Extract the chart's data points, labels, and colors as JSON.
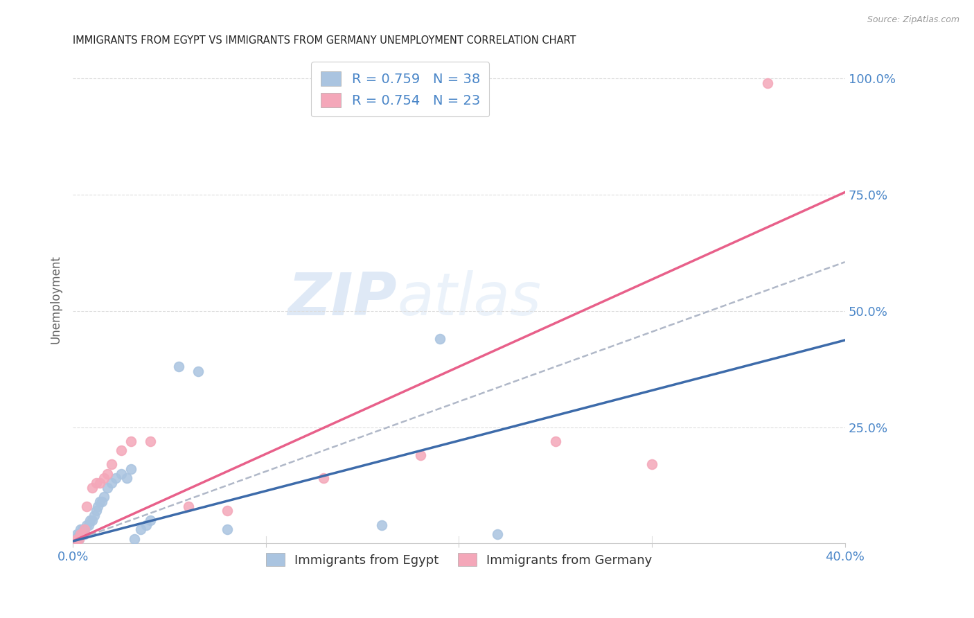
{
  "title": "IMMIGRANTS FROM EGYPT VS IMMIGRANTS FROM GERMANY UNEMPLOYMENT CORRELATION CHART",
  "source": "Source: ZipAtlas.com",
  "ylabel": "Unemployment",
  "xlim": [
    0.0,
    0.4
  ],
  "ylim": [
    0.0,
    1.05
  ],
  "y_ticks": [
    0.0,
    0.25,
    0.5,
    0.75,
    1.0
  ],
  "y_tick_labels": [
    "",
    "25.0%",
    "50.0%",
    "75.0%",
    "100.0%"
  ],
  "watermark_zip": "ZIP",
  "watermark_atlas": "atlas",
  "egypt_color": "#aac4e0",
  "germany_color": "#f4a7b9",
  "egypt_line_color": "#3d6baa",
  "germany_line_color": "#e8608a",
  "egypt_R": "0.759",
  "egypt_N": "38",
  "germany_R": "0.754",
  "germany_N": "23",
  "legend_label_egypt": "Immigrants from Egypt",
  "legend_label_germany": "Immigrants from Germany",
  "egypt_x": [
    0.001,
    0.001,
    0.002,
    0.002,
    0.003,
    0.003,
    0.004,
    0.004,
    0.005,
    0.005,
    0.006,
    0.006,
    0.007,
    0.008,
    0.009,
    0.01,
    0.011,
    0.012,
    0.013,
    0.014,
    0.015,
    0.016,
    0.018,
    0.02,
    0.022,
    0.025,
    0.028,
    0.03,
    0.032,
    0.035,
    0.038,
    0.04,
    0.055,
    0.065,
    0.08,
    0.16,
    0.19,
    0.22
  ],
  "egypt_y": [
    0.005,
    0.01,
    0.01,
    0.02,
    0.01,
    0.02,
    0.02,
    0.03,
    0.02,
    0.03,
    0.02,
    0.03,
    0.04,
    0.04,
    0.05,
    0.05,
    0.06,
    0.07,
    0.08,
    0.09,
    0.09,
    0.1,
    0.12,
    0.13,
    0.14,
    0.15,
    0.14,
    0.16,
    0.01,
    0.03,
    0.04,
    0.05,
    0.38,
    0.37,
    0.03,
    0.04,
    0.44,
    0.02
  ],
  "germany_x": [
    0.001,
    0.002,
    0.003,
    0.004,
    0.005,
    0.006,
    0.007,
    0.01,
    0.012,
    0.014,
    0.016,
    0.018,
    0.02,
    0.025,
    0.03,
    0.04,
    0.06,
    0.08,
    0.13,
    0.18,
    0.25,
    0.3,
    0.36
  ],
  "germany_y": [
    0.005,
    0.01,
    0.01,
    0.02,
    0.02,
    0.03,
    0.08,
    0.12,
    0.13,
    0.13,
    0.14,
    0.15,
    0.17,
    0.2,
    0.22,
    0.22,
    0.08,
    0.07,
    0.14,
    0.19,
    0.22,
    0.17,
    0.99
  ],
  "egypt_slope": 1.08,
  "egypt_intercept": 0.005,
  "germany_slope": 1.875,
  "germany_intercept": 0.005,
  "dashed_slope": 1.5,
  "dashed_intercept": 0.005,
  "background_color": "#ffffff",
  "grid_color": "#dddddd",
  "title_color": "#222222",
  "axis_label_color": "#4a86c8",
  "right_axis_color": "#4a86c8"
}
